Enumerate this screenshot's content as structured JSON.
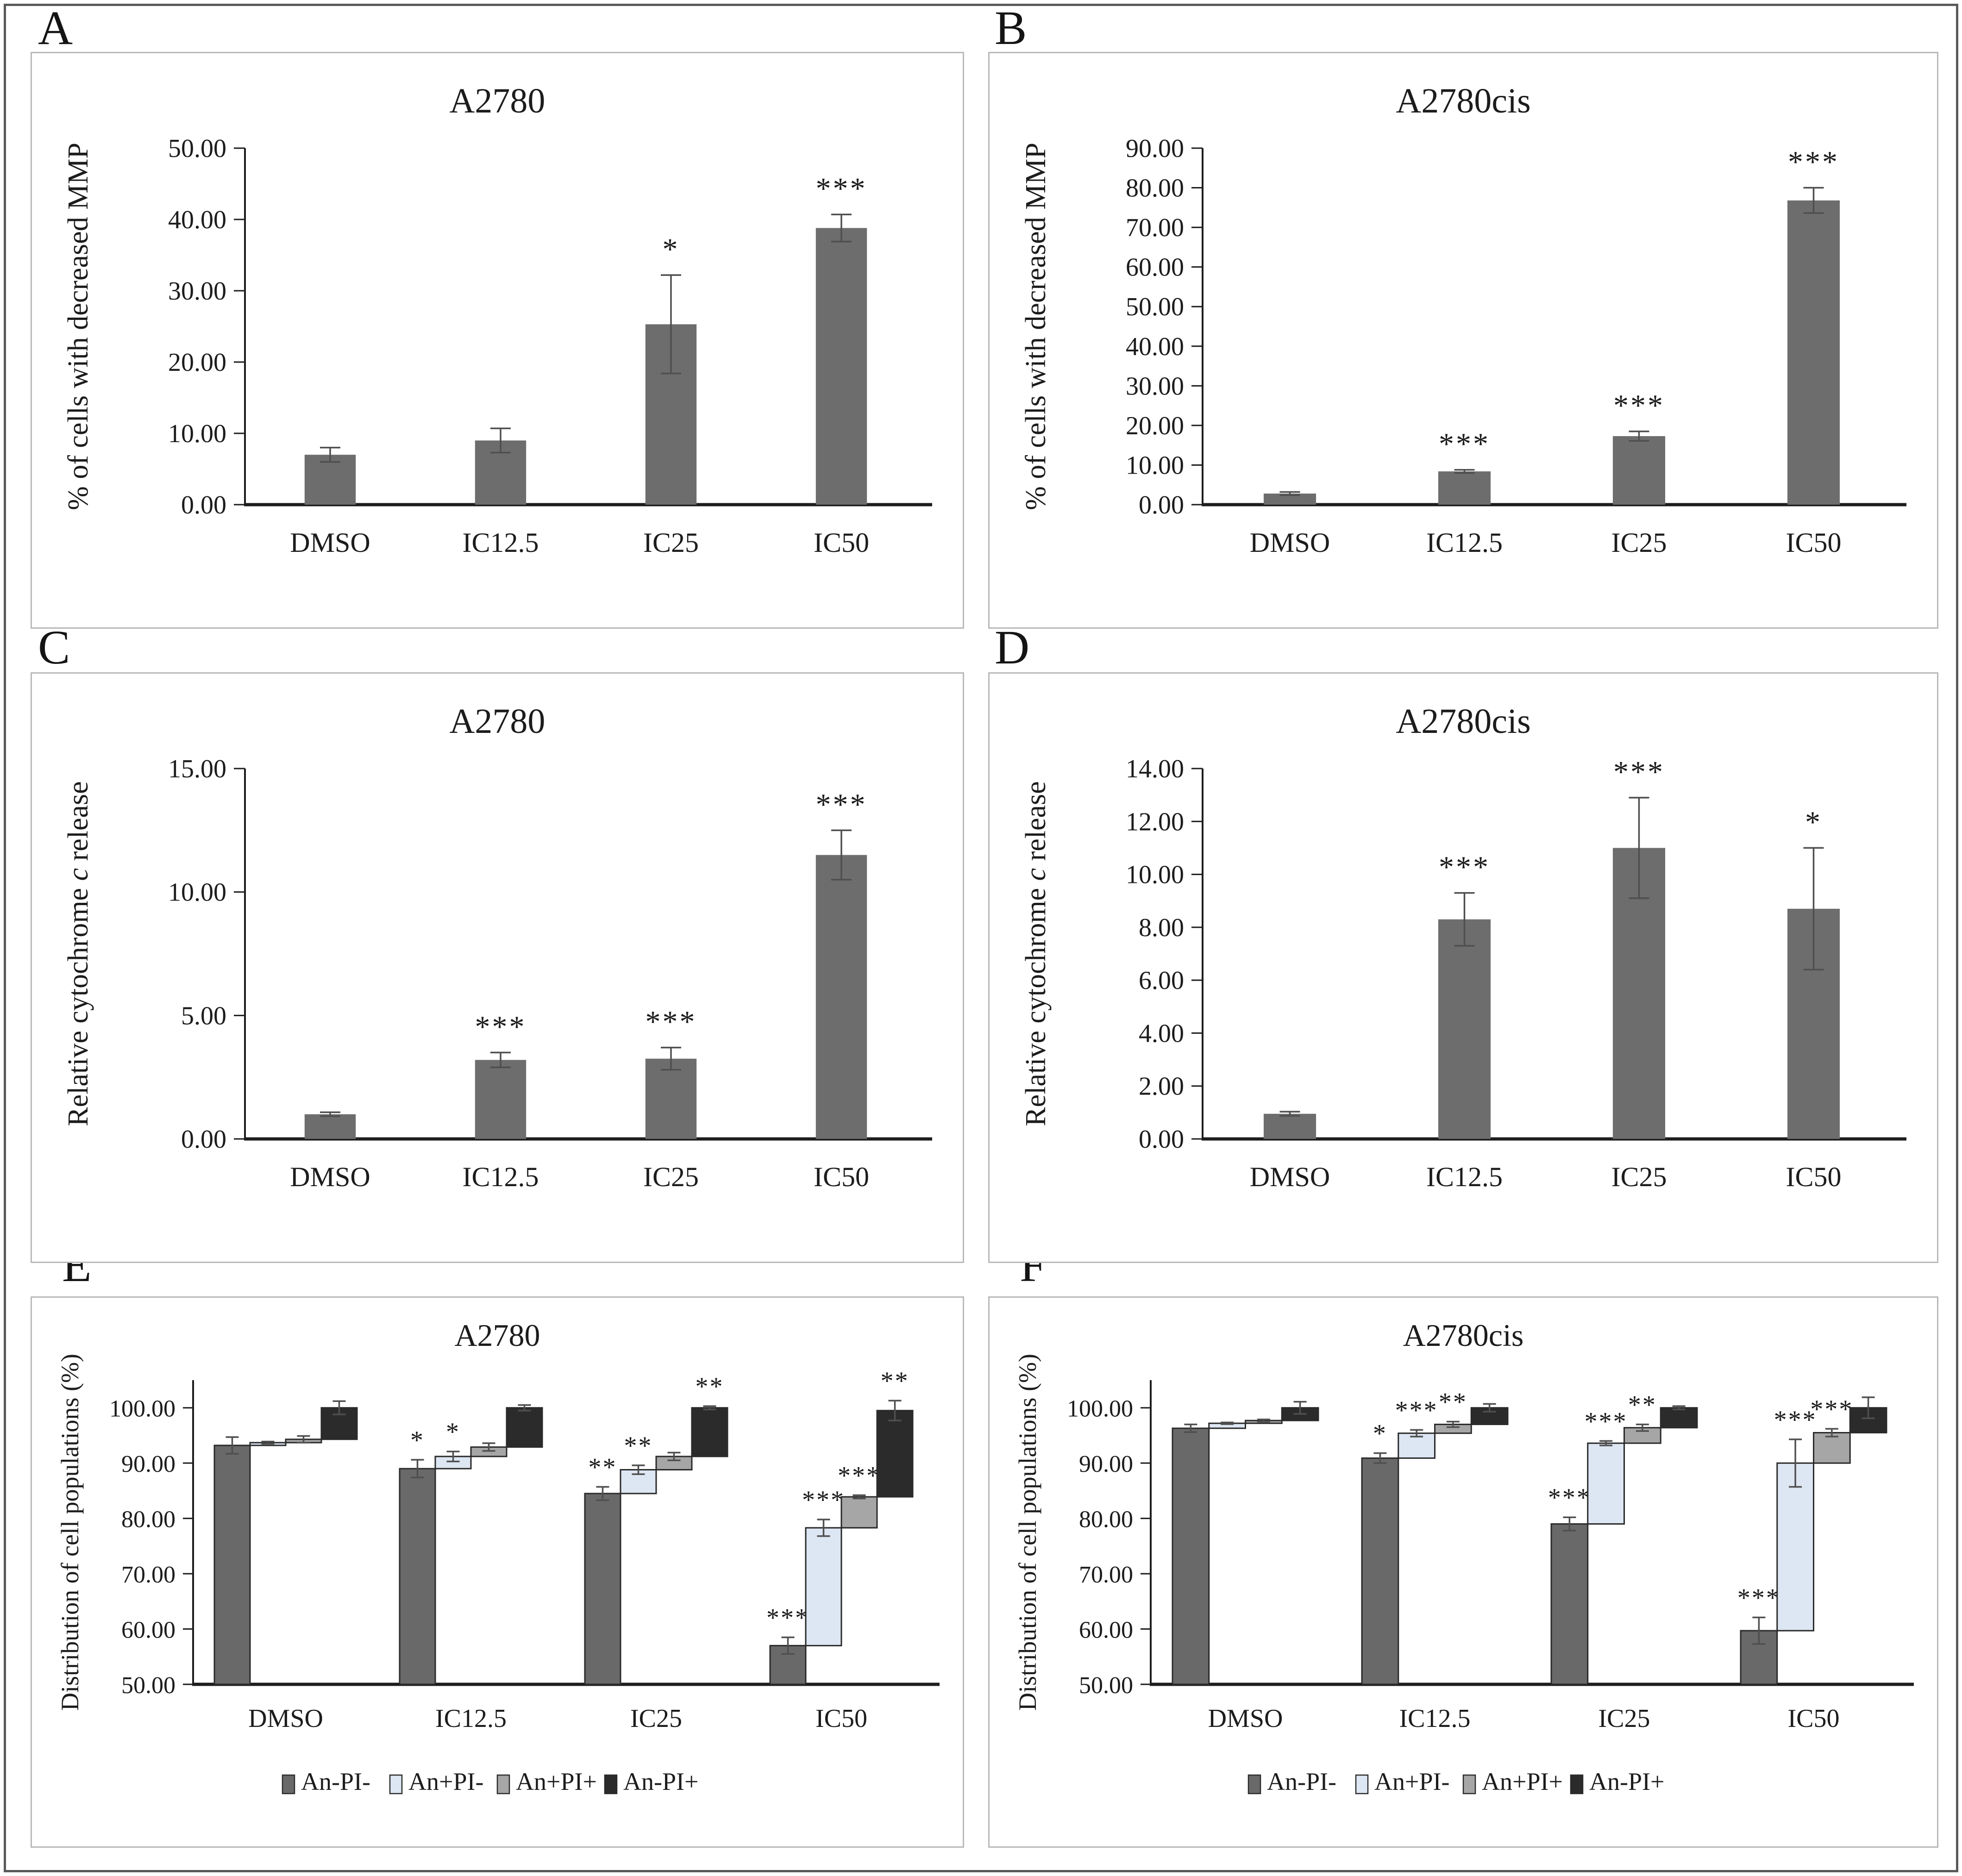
{
  "figure": {
    "background": "#ffffff",
    "frame_color": "#5a5a5a",
    "panel_border_color": "#b9b9b9"
  },
  "colors": {
    "bar": "#6d6d6d",
    "waterfall": [
      "#696969",
      "#dde6f3",
      "#a6a6a6",
      "#2b2b2b"
    ],
    "error": "#4f4f4f",
    "axis": "#1d1d1d",
    "text": "#1c1c1c"
  },
  "legend": {
    "labels": [
      "An-PI-",
      "An+PI-",
      "An+PI+",
      "An-PI+"
    ]
  },
  "chart_data": [
    {
      "letter": "A",
      "type": "bar",
      "title": "A2780",
      "ylabel": "% of cells with decreased MMP",
      "ylabel_parts": [
        {
          "t": "% of cells with decreased MMP"
        }
      ],
      "ylim": [
        0,
        50
      ],
      "ytick_step": 10,
      "axis_headroom": 0,
      "grid": false,
      "legend_position": "none",
      "categories": [
        "DMSO",
        "IC12.5",
        "IC25",
        "IC50"
      ],
      "values": [
        7.0,
        9.0,
        25.3,
        38.8
      ],
      "errors": [
        1.0,
        1.7,
        6.9,
        1.9
      ],
      "sig": [
        "",
        "",
        "*",
        "***"
      ]
    },
    {
      "letter": "B",
      "type": "bar",
      "title": "A2780cis",
      "ylabel": "% of cells with decreased MMP",
      "ylabel_parts": [
        {
          "t": "% of cells with decreased MMP"
        }
      ],
      "ylim": [
        0,
        90
      ],
      "ytick_step": 10,
      "axis_headroom": 0,
      "grid": false,
      "legend_position": "none",
      "categories": [
        "DMSO",
        "IC12.5",
        "IC25",
        "IC50"
      ],
      "values": [
        2.8,
        8.4,
        17.3,
        76.8
      ],
      "errors": [
        0.4,
        0.4,
        1.2,
        3.2
      ],
      "sig": [
        "",
        "***",
        "***",
        "***"
      ]
    },
    {
      "letter": "C",
      "type": "bar",
      "title": "A2780",
      "ylabel": "Relative cytochrome c release",
      "ylabel_parts": [
        {
          "t": "Relative cytochrome "
        },
        {
          "t": "c",
          "i": true
        },
        {
          "t": " release"
        }
      ],
      "ylim": [
        0,
        15
      ],
      "ytick_step": 5,
      "axis_headroom": 0,
      "grid": false,
      "legend_position": "none",
      "categories": [
        "DMSO",
        "IC12.5",
        "IC25",
        "IC50"
      ],
      "values": [
        1.0,
        3.2,
        3.25,
        11.5
      ],
      "errors": [
        0.08,
        0.3,
        0.45,
        1.0
      ],
      "sig": [
        "",
        "***",
        "***",
        "***"
      ]
    },
    {
      "letter": "D",
      "type": "bar",
      "title": "A2780cis",
      "ylabel": "Relative cytochrome c release",
      "ylabel_parts": [
        {
          "t": "Relative cytochrome "
        },
        {
          "t": "c",
          "i": true
        },
        {
          "t": " release"
        }
      ],
      "ylim": [
        0,
        14
      ],
      "ytick_step": 2,
      "axis_headroom": 0,
      "grid": false,
      "legend_position": "none",
      "categories": [
        "DMSO",
        "IC12.5",
        "IC25",
        "IC50"
      ],
      "values": [
        0.95,
        8.3,
        11.0,
        8.7
      ],
      "errors": [
        0.08,
        1.0,
        1.9,
        2.3
      ],
      "sig": [
        "",
        "***",
        "***",
        "*"
      ]
    },
    {
      "letter": "E",
      "type": "waterfall",
      "title": "A2780",
      "ylabel": "Distribution of cell populations (%)",
      "ylabel_parts": [
        {
          "t": "Distribution of cell populations (%)"
        }
      ],
      "ylim": [
        50,
        100
      ],
      "ytick_step": 10,
      "axis_headroom": 5,
      "grid": false,
      "legend_position": "bottom",
      "legend": [
        "An-PI-",
        "An+PI-",
        "An+PI+",
        "An-PI+"
      ],
      "categories": [
        "DMSO",
        "IC12.5",
        "IC25",
        "IC50"
      ],
      "groups": [
        {
          "category": "DMSO",
          "segments": [
            [
              50,
              93.2
            ],
            [
              93.2,
              93.7
            ],
            [
              93.7,
              94.3
            ],
            [
              94.3,
              100.0
            ]
          ],
          "errors": [
            1.5,
            0.2,
            0.6,
            1.2
          ],
          "sig": [
            "",
            "",
            "",
            ""
          ]
        },
        {
          "category": "IC12.5",
          "segments": [
            [
              50,
              89.0
            ],
            [
              89.0,
              91.2
            ],
            [
              91.2,
              92.9
            ],
            [
              92.9,
              100.0
            ]
          ],
          "errors": [
            1.6,
            0.9,
            0.7,
            0.5
          ],
          "sig": [
            "*",
            "*",
            "",
            ""
          ]
        },
        {
          "category": "IC25",
          "segments": [
            [
              50,
              84.5
            ],
            [
              84.5,
              88.8
            ],
            [
              88.8,
              91.2
            ],
            [
              91.2,
              100.0
            ]
          ],
          "errors": [
            1.2,
            0.8,
            0.7,
            0.3
          ],
          "sig": [
            "**",
            "**",
            "",
            "**"
          ]
        },
        {
          "category": "IC50",
          "segments": [
            [
              50,
              57.0
            ],
            [
              57.0,
              78.3
            ],
            [
              78.3,
              83.9
            ],
            [
              83.9,
              99.5
            ]
          ],
          "errors": [
            1.5,
            1.5,
            0.3,
            1.8
          ],
          "sig": [
            "***",
            "***",
            "***",
            "**"
          ]
        }
      ]
    },
    {
      "letter": "F",
      "type": "waterfall",
      "title": "A2780cis",
      "ylabel": "Distribution of cell populations (%)",
      "ylabel_parts": [
        {
          "t": "Distribution of cell populations (%)"
        }
      ],
      "ylim": [
        50,
        100
      ],
      "ytick_step": 10,
      "axis_headroom": 5,
      "grid": false,
      "legend_position": "bottom",
      "legend": [
        "An-PI-",
        "An+PI-",
        "An+PI+",
        "An-PI+"
      ],
      "categories": [
        "DMSO",
        "IC12.5",
        "IC25",
        "IC50"
      ],
      "groups": [
        {
          "category": "DMSO",
          "segments": [
            [
              50,
              96.3
            ],
            [
              96.3,
              97.2
            ],
            [
              97.2,
              97.7
            ],
            [
              97.7,
              100.0
            ]
          ],
          "errors": [
            0.7,
            0.15,
            0.2,
            1.1
          ],
          "sig": [
            "",
            "",
            "",
            ""
          ]
        },
        {
          "category": "IC12.5",
          "segments": [
            [
              50,
              90.9
            ],
            [
              90.9,
              95.4
            ],
            [
              95.4,
              97.0
            ],
            [
              97.0,
              100.0
            ]
          ],
          "errors": [
            0.9,
            0.6,
            0.5,
            0.7
          ],
          "sig": [
            "*",
            "***",
            "**",
            ""
          ]
        },
        {
          "category": "IC25",
          "segments": [
            [
              50,
              79.0
            ],
            [
              79.0,
              93.6
            ],
            [
              93.6,
              96.4
            ],
            [
              96.4,
              100.0
            ]
          ],
          "errors": [
            1.2,
            0.4,
            0.6,
            0.3
          ],
          "sig": [
            "***",
            "***",
            "**",
            ""
          ]
        },
        {
          "category": "IC50",
          "segments": [
            [
              50,
              59.7
            ],
            [
              59.7,
              90.0
            ],
            [
              90.0,
              95.5
            ],
            [
              95.5,
              100.0
            ]
          ],
          "errors": [
            2.4,
            4.3,
            0.7,
            1.9
          ],
          "sig": [
            "***",
            "***",
            "***",
            ""
          ]
        }
      ]
    }
  ]
}
